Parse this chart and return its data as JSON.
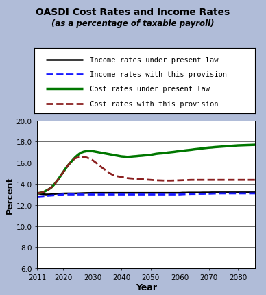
{
  "title": "OASDI Cost Rates and Income Rates",
  "subtitle": "(as a percentage of taxable payroll)",
  "xlabel": "Year",
  "ylabel": "Percent",
  "bg_color": "#b0bcd8",
  "plot_bg_color": "#ffffff",
  "ylim": [
    6.0,
    20.0
  ],
  "yticks": [
    6.0,
    8.0,
    10.0,
    12.0,
    14.0,
    16.0,
    18.0,
    20.0
  ],
  "xlim": [
    2011,
    2086
  ],
  "xticks": [
    2011,
    2020,
    2030,
    2040,
    2050,
    2060,
    2070,
    2080
  ],
  "years": [
    2011,
    2012,
    2013,
    2014,
    2015,
    2016,
    2017,
    2018,
    2019,
    2020,
    2021,
    2022,
    2023,
    2024,
    2025,
    2026,
    2027,
    2028,
    2029,
    2030,
    2031,
    2032,
    2033,
    2034,
    2035,
    2036,
    2037,
    2038,
    2039,
    2040,
    2041,
    2042,
    2043,
    2044,
    2045,
    2046,
    2047,
    2048,
    2049,
    2050,
    2051,
    2052,
    2053,
    2054,
    2055,
    2056,
    2057,
    2058,
    2059,
    2060,
    2061,
    2062,
    2063,
    2064,
    2065,
    2066,
    2067,
    2068,
    2069,
    2070,
    2071,
    2072,
    2073,
    2074,
    2075,
    2076,
    2077,
    2078,
    2079,
    2080,
    2081,
    2082,
    2083,
    2084,
    2085,
    2086
  ],
  "income_present_law": [
    13.1,
    13.05,
    13.02,
    13.0,
    13.0,
    13.02,
    13.05,
    13.07,
    13.08,
    13.09,
    13.1,
    13.1,
    13.1,
    13.1,
    13.11,
    13.12,
    13.13,
    13.14,
    13.14,
    13.15,
    13.15,
    13.15,
    13.15,
    13.15,
    13.15,
    13.15,
    13.15,
    13.15,
    13.15,
    13.15,
    13.15,
    13.15,
    13.15,
    13.15,
    13.15,
    13.15,
    13.15,
    13.15,
    13.15,
    13.15,
    13.15,
    13.15,
    13.15,
    13.15,
    13.15,
    13.15,
    13.15,
    13.15,
    13.15,
    13.15,
    13.17,
    13.17,
    13.18,
    13.18,
    13.18,
    13.18,
    13.18,
    13.19,
    13.19,
    13.19,
    13.2,
    13.2,
    13.2,
    13.2,
    13.2,
    13.2,
    13.2,
    13.2,
    13.2,
    13.2,
    13.2,
    13.2,
    13.2,
    13.2,
    13.2,
    13.2
  ],
  "income_provision": [
    12.8,
    12.82,
    12.84,
    12.86,
    12.88,
    12.9,
    12.92,
    12.95,
    12.97,
    13.0,
    13.0,
    13.0,
    13.0,
    13.0,
    13.0,
    13.0,
    13.0,
    13.0,
    13.0,
    13.0,
    13.0,
    13.0,
    13.0,
    13.0,
    13.0,
    13.0,
    13.0,
    13.0,
    13.0,
    13.0,
    13.0,
    13.0,
    13.0,
    13.0,
    13.0,
    13.0,
    13.0,
    13.0,
    13.0,
    13.0,
    13.0,
    13.0,
    13.0,
    13.0,
    13.0,
    13.0,
    13.0,
    13.0,
    13.0,
    13.0,
    13.02,
    13.03,
    13.04,
    13.05,
    13.05,
    13.05,
    13.06,
    13.06,
    13.07,
    13.07,
    13.08,
    13.09,
    13.09,
    13.1,
    13.1,
    13.1,
    13.1,
    13.1,
    13.1,
    13.1,
    13.1,
    13.1,
    13.1,
    13.1,
    13.1,
    13.1
  ],
  "cost_present_law": [
    13.1,
    13.15,
    13.2,
    13.35,
    13.5,
    13.7,
    14.0,
    14.35,
    14.75,
    15.15,
    15.55,
    15.9,
    16.2,
    16.5,
    16.75,
    16.95,
    17.05,
    17.1,
    17.1,
    17.1,
    17.05,
    17.0,
    16.95,
    16.9,
    16.85,
    16.8,
    16.75,
    16.7,
    16.65,
    16.6,
    16.58,
    16.55,
    16.57,
    16.6,
    16.62,
    16.65,
    16.67,
    16.7,
    16.72,
    16.75,
    16.8,
    16.85,
    16.88,
    16.9,
    16.93,
    16.97,
    17.0,
    17.03,
    17.07,
    17.1,
    17.13,
    17.17,
    17.2,
    17.23,
    17.27,
    17.3,
    17.33,
    17.37,
    17.4,
    17.43,
    17.45,
    17.48,
    17.5,
    17.52,
    17.54,
    17.56,
    17.58,
    17.6,
    17.62,
    17.64,
    17.65,
    17.66,
    17.67,
    17.68,
    17.69,
    17.7
  ],
  "cost_provision": [
    13.1,
    13.15,
    13.2,
    13.35,
    13.5,
    13.7,
    14.0,
    14.35,
    14.75,
    15.15,
    15.55,
    15.9,
    16.2,
    16.42,
    16.5,
    16.55,
    16.55,
    16.5,
    16.38,
    16.25,
    16.05,
    15.85,
    15.6,
    15.4,
    15.2,
    15.0,
    14.85,
    14.75,
    14.7,
    14.65,
    14.6,
    14.55,
    14.52,
    14.5,
    14.48,
    14.46,
    14.44,
    14.42,
    14.4,
    14.38,
    14.36,
    14.34,
    14.33,
    14.32,
    14.31,
    14.31,
    14.31,
    14.32,
    14.33,
    14.34,
    14.35,
    14.36,
    14.37,
    14.38,
    14.38,
    14.38,
    14.38,
    14.38,
    14.38,
    14.38,
    14.38,
    14.38,
    14.38,
    14.38,
    14.38,
    14.38,
    14.38,
    14.38,
    14.38,
    14.38,
    14.38,
    14.38,
    14.38,
    14.38,
    14.38,
    14.38
  ],
  "legend_entries": [
    {
      "label": "Income rates under present law",
      "color": "#000000",
      "lw": 1.8,
      "ls": "solid"
    },
    {
      "label": "Income rates with this provision",
      "color": "#1a1aff",
      "lw": 2.0,
      "ls": "dashed"
    },
    {
      "label": "Cost rates under present law",
      "color": "#007700",
      "lw": 2.5,
      "ls": "solid"
    },
    {
      "label": "Cost rates with this provision",
      "color": "#8b2020",
      "lw": 2.0,
      "ls": "dashed"
    }
  ]
}
